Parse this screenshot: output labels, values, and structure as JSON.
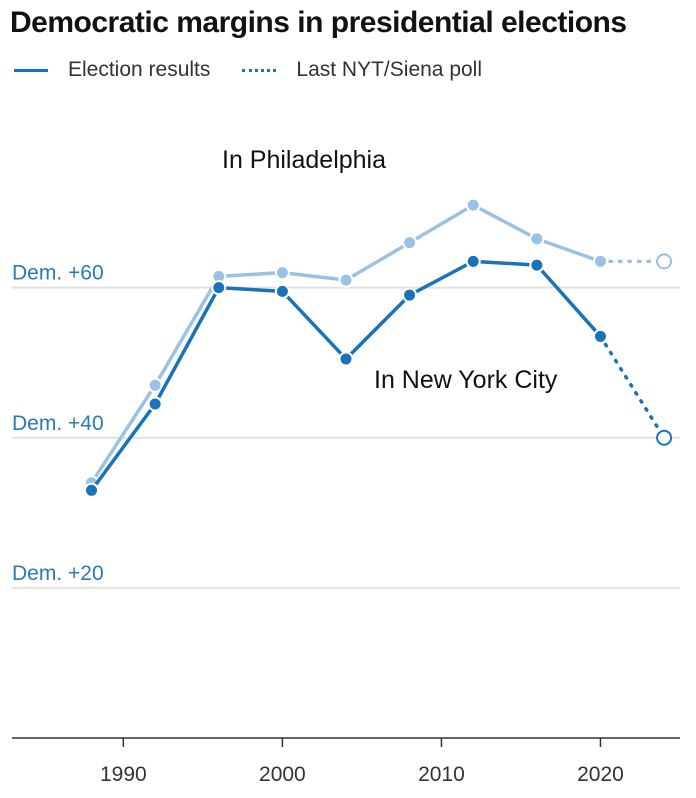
{
  "chart_data": {
    "type": "line",
    "title": "Democratic margins in presidential elections",
    "legend": {
      "solid_label": "Election results",
      "dotted_label": "Last NYT/Siena poll"
    },
    "y_tick_labels": [
      "Dem. +20",
      "Dem. +40",
      "Dem. +60"
    ],
    "y_tick_values": [
      20,
      40,
      60
    ],
    "x_tick_labels": [
      "1990",
      "2000",
      "2010",
      "2020"
    ],
    "x_tick_values": [
      1990,
      2000,
      2010,
      2020
    ],
    "xlim": [
      1983,
      2025
    ],
    "ylim": [
      0,
      85
    ],
    "series": [
      {
        "name": "In Philadelphia",
        "color": "#9bc2e3",
        "x": [
          1988,
          1992,
          1996,
          2000,
          2004,
          2008,
          2012,
          2016,
          2020
        ],
        "values": [
          34,
          47,
          61.5,
          62,
          61,
          66,
          71,
          66.5,
          63.5
        ],
        "poll": {
          "x": 2024,
          "value": 63.5
        }
      },
      {
        "name": "In New York City",
        "color": "#1a72b8",
        "x": [
          1988,
          1992,
          1996,
          2000,
          2004,
          2008,
          2012,
          2016,
          2020
        ],
        "values": [
          33,
          44.5,
          60,
          59.5,
          50.5,
          59,
          63.5,
          63,
          53.5
        ],
        "poll": {
          "x": 2024,
          "value": 40
        }
      }
    ]
  }
}
